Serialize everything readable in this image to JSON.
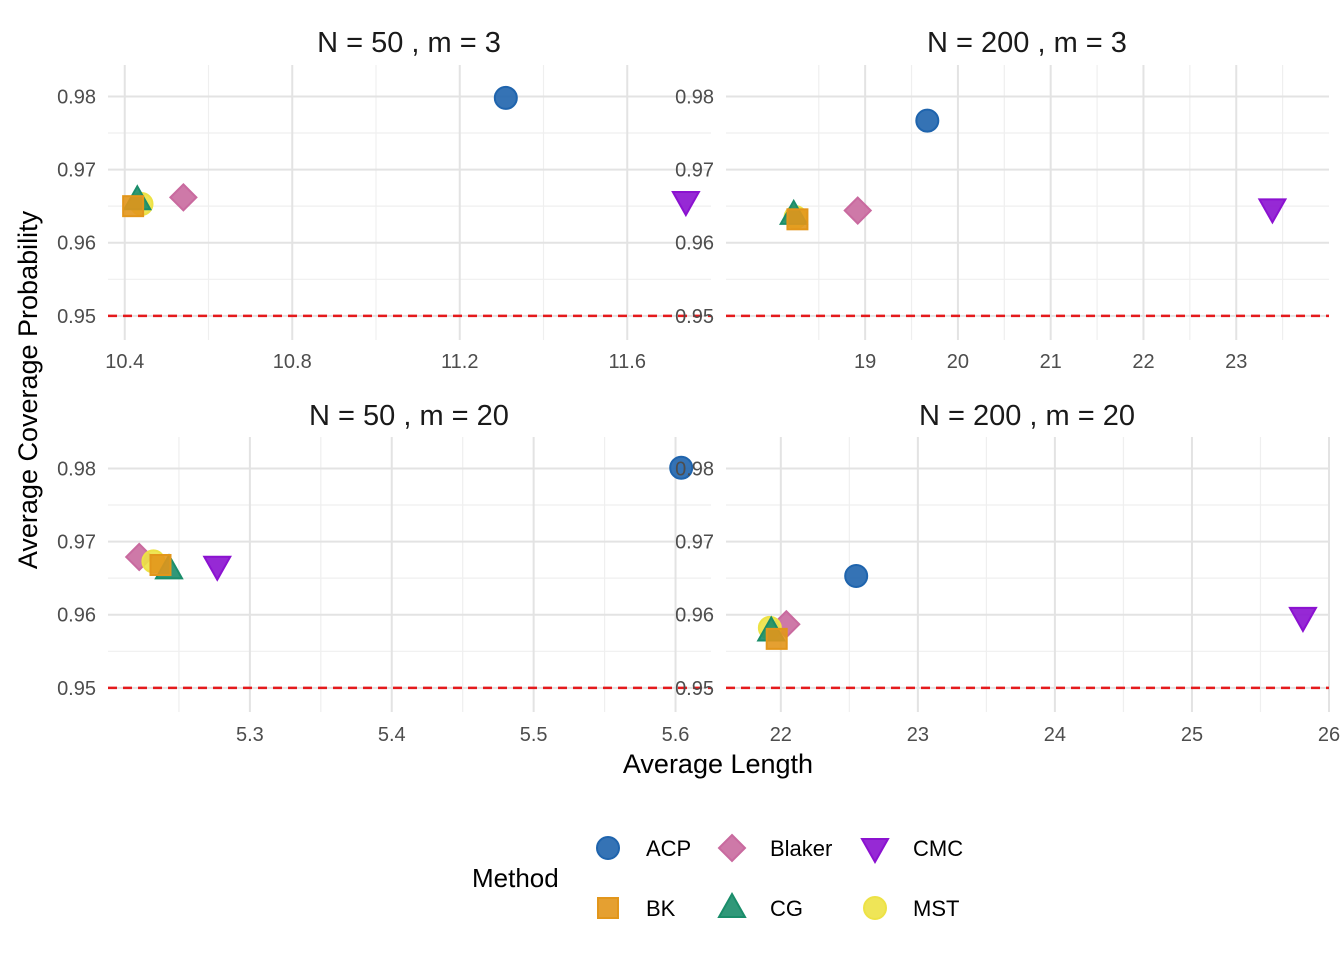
{
  "labels": {
    "xlabel": "Average Length",
    "ylabel": "Average Coverage Probability",
    "legend_title": "Method"
  },
  "legend": [
    {
      "name": "ACP",
      "shape": "circle",
      "color": "#1f64ad"
    },
    {
      "name": "Blaker",
      "shape": "diamond",
      "color": "#c96a9f"
    },
    {
      "name": "CMC",
      "shape": "triangle-down",
      "color": "#8b12d0"
    },
    {
      "name": "BK",
      "shape": "square",
      "color": "#e2961b"
    },
    {
      "name": "CG",
      "shape": "triangle-up",
      "color": "#1a8d6a"
    },
    {
      "name": "MST",
      "shape": "circle",
      "color": "#ede245"
    }
  ],
  "chart_data": [
    {
      "type": "scatter",
      "title": "N = 50 , m = 3",
      "xlim": [
        10.36,
        11.8
      ],
      "ylim": [
        0.9467,
        0.9843
      ],
      "xticks": [
        10.4,
        10.8,
        11.2,
        11.6
      ],
      "xtick_labels": [
        "10.4",
        "10.8",
        "11.2",
        "11.6"
      ],
      "yticks": [
        0.95,
        0.96,
        0.97,
        0.98
      ],
      "ytick_labels": [
        "0.95",
        "0.96",
        "0.97",
        "0.98"
      ],
      "reference_line": 0.95,
      "series": [
        {
          "name": "ACP",
          "x": 11.31,
          "y": 0.9798
        },
        {
          "name": "Blaker",
          "x": 10.54,
          "y": 0.9662
        },
        {
          "name": "CMC",
          "x": 11.74,
          "y": 0.9657
        },
        {
          "name": "BK",
          "x": 10.42,
          "y": 0.965
        },
        {
          "name": "CG",
          "x": 10.43,
          "y": 0.9658
        },
        {
          "name": "MST",
          "x": 10.44,
          "y": 0.9653
        }
      ]
    },
    {
      "type": "scatter",
      "title": "N = 200 , m = 3",
      "xlim": [
        17.5,
        24.0
      ],
      "ylim": [
        0.9467,
        0.9843
      ],
      "xticks": [
        19,
        20,
        21,
        22,
        23
      ],
      "xtick_labels": [
        "19",
        "20",
        "21",
        "22",
        "23"
      ],
      "yticks": [
        0.95,
        0.96,
        0.97,
        0.98
      ],
      "ytick_labels": [
        "0.95",
        "0.96",
        "0.97",
        "0.98"
      ],
      "reference_line": 0.95,
      "series": [
        {
          "name": "ACP",
          "x": 19.67,
          "y": 0.9767
        },
        {
          "name": "Blaker",
          "x": 18.92,
          "y": 0.9644
        },
        {
          "name": "CMC",
          "x": 23.39,
          "y": 0.9647
        },
        {
          "name": "BK",
          "x": 18.27,
          "y": 0.9632
        },
        {
          "name": "CG",
          "x": 18.23,
          "y": 0.9638
        },
        {
          "name": "MST",
          "x": 18.25,
          "y": 0.9635
        }
      ]
    },
    {
      "type": "scatter",
      "title": "N = 50 , m = 20",
      "xlim": [
        5.2,
        5.625
      ],
      "ylim": [
        0.9467,
        0.9843
      ],
      "xticks": [
        5.3,
        5.4,
        5.5,
        5.6
      ],
      "xtick_labels": [
        "5.3",
        "5.4",
        "5.5",
        "5.6"
      ],
      "yticks": [
        0.95,
        0.96,
        0.97,
        0.98
      ],
      "ytick_labels": [
        "0.95",
        "0.96",
        "0.97",
        "0.98"
      ],
      "reference_line": 0.95,
      "series": [
        {
          "name": "ACP",
          "x": 5.604,
          "y": 0.9801
        },
        {
          "name": "Blaker",
          "x": 5.222,
          "y": 0.9679
        },
        {
          "name": "CMC",
          "x": 5.277,
          "y": 0.9667
        },
        {
          "name": "BK",
          "x": 5.237,
          "y": 0.9668
        },
        {
          "name": "CG",
          "x": 5.243,
          "y": 0.9662
        },
        {
          "name": "MST",
          "x": 5.232,
          "y": 0.9673
        }
      ]
    },
    {
      "type": "scatter",
      "title": "N = 200 , m = 20",
      "xlim": [
        21.6,
        26.0
      ],
      "ylim": [
        0.9467,
        0.9843
      ],
      "xticks": [
        22,
        23,
        24,
        25,
        26
      ],
      "xtick_labels": [
        "22",
        "23",
        "24",
        "25",
        "26"
      ],
      "yticks": [
        0.95,
        0.96,
        0.97,
        0.98
      ],
      "ytick_labels": [
        "0.95",
        "0.96",
        "0.97",
        "0.98"
      ],
      "reference_line": 0.95,
      "series": [
        {
          "name": "ACP",
          "x": 22.55,
          "y": 0.9653
        },
        {
          "name": "Blaker",
          "x": 22.04,
          "y": 0.9587
        },
        {
          "name": "CMC",
          "x": 25.81,
          "y": 0.9597
        },
        {
          "name": "BK",
          "x": 21.97,
          "y": 0.9567
        },
        {
          "name": "CG",
          "x": 21.93,
          "y": 0.9577
        },
        {
          "name": "MST",
          "x": 21.92,
          "y": 0.9582
        }
      ]
    }
  ]
}
